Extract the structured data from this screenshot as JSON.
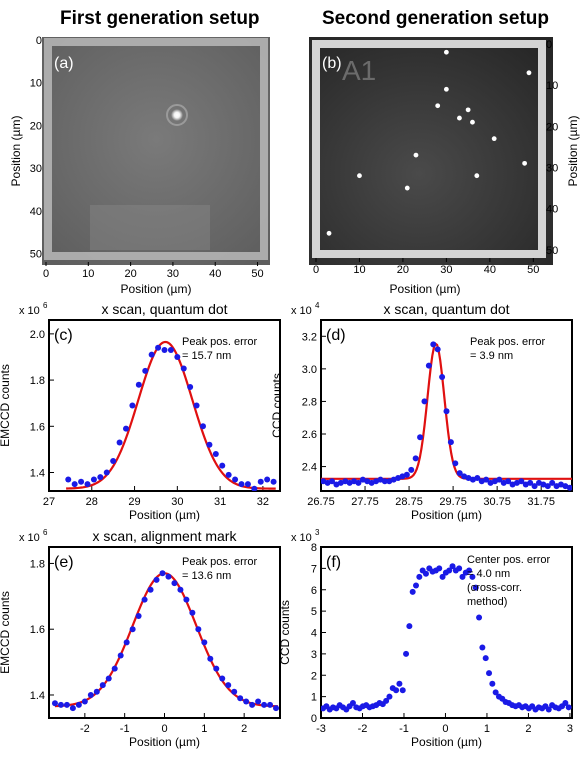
{
  "headers": {
    "left": "First generation setup",
    "right": "Second generation setup"
  },
  "colors": {
    "data_points": "#1a1ae6",
    "fit_line": "#e01010",
    "frame": "#000000",
    "image_frame": "#d8d8d8"
  },
  "chart_data": [
    {
      "panel": "(a)",
      "type": "heatmap",
      "title": "",
      "xlabel": "Position (µm)",
      "ylabel": "Position (µm)",
      "xlim": [
        0,
        52
      ],
      "ylim": [
        0,
        52
      ],
      "xticks": [
        "0",
        "10",
        "20",
        "30",
        "40",
        "50"
      ],
      "yticks": [
        "0",
        "10",
        "20",
        "30",
        "40",
        "50"
      ],
      "ytick_side": "right",
      "description_points": [
        {
          "x": 30,
          "y": 17,
          "kind": "quantum dot"
        }
      ]
    },
    {
      "panel": "(b)",
      "type": "heatmap",
      "title": "",
      "label": "A1",
      "xlabel": "Position (µm)",
      "ylabel": "Position (µm)",
      "xlim": [
        0,
        52
      ],
      "ylim": [
        0,
        52
      ],
      "xticks": [
        "0",
        "10",
        "20",
        "30",
        "40",
        "50"
      ],
      "yticks": [
        "0",
        "10",
        "20",
        "30",
        "40",
        "50"
      ],
      "ytick_side": "right",
      "bright_spots": [
        {
          "x": 30,
          "y": 11
        },
        {
          "x": 35,
          "y": 16
        },
        {
          "x": 28,
          "y": 15
        },
        {
          "x": 33,
          "y": 18
        },
        {
          "x": 41,
          "y": 23
        },
        {
          "x": 48,
          "y": 29
        },
        {
          "x": 10,
          "y": 32
        },
        {
          "x": 21,
          "y": 35
        },
        {
          "x": 37,
          "y": 32
        },
        {
          "x": 30,
          "y": 2
        },
        {
          "x": 49,
          "y": 7
        },
        {
          "x": 23,
          "y": 27
        },
        {
          "x": 3,
          "y": 46
        },
        {
          "x": 36,
          "y": 19
        }
      ]
    },
    {
      "panel": "(c)",
      "type": "scatter",
      "title": "x scan, quantum dot",
      "xlabel": "Position (µm)",
      "ylabel": "EMCCD counts",
      "scale_label": "x 10",
      "scale_exp": "6",
      "annotation": [
        "Peak pos. error",
        "= 15.7 nm"
      ],
      "xlim": [
        27,
        32.4
      ],
      "ylim": [
        1.32,
        2.06
      ],
      "xticks": [
        27,
        28,
        29,
        30,
        31,
        32
      ],
      "xtick_labels": [
        "27",
        "28",
        "29",
        "30",
        "31",
        "32"
      ],
      "yticks": [
        1.4,
        1.6,
        1.8,
        2.0
      ],
      "ytick_labels": [
        "1.4",
        "1.6",
        "1.8",
        "2.0"
      ],
      "series": [
        {
          "kind": "points",
          "x": [
            27.45,
            27.6,
            27.75,
            27.9,
            28.05,
            28.2,
            28.35,
            28.5,
            28.65,
            28.8,
            28.95,
            29.1,
            29.25,
            29.4,
            29.55,
            29.7,
            29.85,
            30.0,
            30.15,
            30.3,
            30.45,
            30.6,
            30.75,
            30.9,
            31.05,
            31.2,
            31.35,
            31.5,
            31.65,
            31.8,
            31.95,
            32.1,
            32.25
          ],
          "y": [
            1.37,
            1.35,
            1.36,
            1.35,
            1.37,
            1.38,
            1.4,
            1.45,
            1.53,
            1.59,
            1.69,
            1.78,
            1.84,
            1.91,
            1.94,
            1.93,
            1.93,
            1.9,
            1.85,
            1.77,
            1.69,
            1.6,
            1.52,
            1.48,
            1.43,
            1.39,
            1.37,
            1.35,
            1.35,
            1.33,
            1.36,
            1.37,
            1.36
          ]
        },
        {
          "kind": "gaussian",
          "amplitude": 0.635,
          "center": 29.72,
          "sigma": 0.63,
          "offset": 1.33,
          "x_range": [
            27.4,
            32.3
          ]
        }
      ]
    },
    {
      "panel": "(d)",
      "type": "scatter",
      "title": "x scan, quantum dot",
      "xlabel": "Position (µm)",
      "ylabel": "CCD counts",
      "scale_label": "x 10",
      "scale_exp": "4",
      "annotation": [
        "Peak pos. error",
        "= 3.9 nm"
      ],
      "xlim": [
        26.75,
        32.45
      ],
      "ylim": [
        2.25,
        3.3
      ],
      "xticks": [
        26.75,
        27.75,
        28.75,
        29.75,
        30.75,
        31.75
      ],
      "xtick_labels": [
        "26.75",
        "27.75",
        "28.75",
        "29.75",
        "30.75",
        "31.75"
      ],
      "yticks": [
        2.4,
        2.6,
        2.8,
        3.0,
        3.2
      ],
      "ytick_labels": [
        "2.4",
        "2.6",
        "2.8",
        "3.0",
        "3.2"
      ],
      "series": [
        {
          "kind": "points",
          "x": [
            26.8,
            26.9,
            27.0,
            27.1,
            27.2,
            27.3,
            27.4,
            27.5,
            27.6,
            27.7,
            27.8,
            27.9,
            28.0,
            28.1,
            28.2,
            28.3,
            28.4,
            28.5,
            28.6,
            28.7,
            28.8,
            28.9,
            29.0,
            29.1,
            29.2,
            29.3,
            29.4,
            29.5,
            29.6,
            29.7,
            29.8,
            29.9,
            30.0,
            30.1,
            30.2,
            30.3,
            30.4,
            30.5,
            30.6,
            30.7,
            30.8,
            30.9,
            31.0,
            31.1,
            31.2,
            31.3,
            31.4,
            31.5,
            31.6,
            31.7,
            31.8,
            31.9,
            32.0,
            32.1,
            32.2,
            32.3,
            32.4
          ],
          "y": [
            2.31,
            2.3,
            2.31,
            2.29,
            2.3,
            2.31,
            2.3,
            2.31,
            2.3,
            2.32,
            2.31,
            2.3,
            2.31,
            2.32,
            2.31,
            2.31,
            2.32,
            2.33,
            2.34,
            2.35,
            2.38,
            2.45,
            2.58,
            2.8,
            3.02,
            3.15,
            3.12,
            2.95,
            2.74,
            2.55,
            2.42,
            2.36,
            2.34,
            2.33,
            2.32,
            2.33,
            2.31,
            2.32,
            2.3,
            2.31,
            2.32,
            2.3,
            2.31,
            2.29,
            2.3,
            2.31,
            2.29,
            2.3,
            2.28,
            2.3,
            2.29,
            2.28,
            2.3,
            2.28,
            2.29,
            2.28,
            2.27
          ]
        },
        {
          "kind": "gaussian",
          "amplitude": 0.83,
          "center": 29.36,
          "sigma": 0.19,
          "offset": 2.325,
          "x_range": [
            26.75,
            32.45
          ]
        }
      ]
    },
    {
      "panel": "(e)",
      "type": "scatter",
      "title": "x scan, alignment mark",
      "xlabel": "Position (µm)",
      "ylabel": "EMCCD counts",
      "scale_label": "x 10",
      "scale_exp": "6",
      "annotation": [
        "Peak pos. error",
        "= 13.6 nm"
      ],
      "xlim": [
        -2.9,
        2.9
      ],
      "ylim": [
        1.33,
        1.85
      ],
      "xticks": [
        -2,
        -1,
        0,
        1,
        2
      ],
      "xtick_labels": [
        "-2",
        "-1",
        "0",
        "1",
        "2"
      ],
      "yticks": [
        1.4,
        1.6,
        1.8
      ],
      "ytick_labels": [
        "1.4",
        "1.6",
        "1.8"
      ],
      "series": [
        {
          "kind": "points",
          "x": [
            -2.75,
            -2.6,
            -2.45,
            -2.3,
            -2.15,
            -2.0,
            -1.85,
            -1.7,
            -1.55,
            -1.4,
            -1.25,
            -1.1,
            -0.95,
            -0.8,
            -0.65,
            -0.5,
            -0.35,
            -0.2,
            -0.05,
            0.1,
            0.25,
            0.4,
            0.55,
            0.7,
            0.85,
            1.0,
            1.15,
            1.3,
            1.45,
            1.6,
            1.75,
            1.9,
            2.05,
            2.2,
            2.35,
            2.5,
            2.65,
            2.8
          ],
          "y": [
            1.375,
            1.37,
            1.37,
            1.36,
            1.37,
            1.38,
            1.4,
            1.41,
            1.43,
            1.45,
            1.48,
            1.52,
            1.56,
            1.6,
            1.64,
            1.69,
            1.72,
            1.75,
            1.77,
            1.76,
            1.74,
            1.72,
            1.69,
            1.65,
            1.6,
            1.56,
            1.51,
            1.48,
            1.45,
            1.43,
            1.41,
            1.39,
            1.38,
            1.37,
            1.38,
            1.37,
            1.37,
            1.36
          ]
        },
        {
          "kind": "gaussian",
          "amplitude": 0.405,
          "center": 0.0,
          "sigma": 0.8,
          "offset": 1.365,
          "x_range": [
            -2.75,
            2.85
          ]
        }
      ]
    },
    {
      "panel": "(f)",
      "type": "scatter",
      "title": "",
      "xlabel": "Position (µm)",
      "ylabel": "CCD counts",
      "scale_label": "x 10",
      "scale_exp": "3",
      "annotation": [
        "Center pos. error",
        "= 4.0 nm",
        "(cross-corr.",
        "method)"
      ],
      "xlim": [
        -3.0,
        3.05
      ],
      "ylim": [
        0,
        8
      ],
      "xticks": [
        -3,
        -2,
        -1,
        0,
        1,
        2,
        3
      ],
      "xtick_labels": [
        "-3",
        "-2",
        "-1",
        "0",
        "1",
        "2",
        "3"
      ],
      "yticks": [
        0,
        1,
        2,
        3,
        4,
        5,
        6,
        7,
        8
      ],
      "ytick_labels": [
        "0",
        "1",
        "2",
        "3",
        "4",
        "5",
        "6",
        "7",
        "8"
      ],
      "series": [
        {
          "kind": "points",
          "x": [
            -2.95,
            -2.87,
            -2.79,
            -2.71,
            -2.63,
            -2.55,
            -2.47,
            -2.39,
            -2.31,
            -2.23,
            -2.15,
            -2.07,
            -1.99,
            -1.91,
            -1.83,
            -1.75,
            -1.67,
            -1.59,
            -1.51,
            -1.43,
            -1.35,
            -1.27,
            -1.19,
            -1.11,
            -1.03,
            -0.95,
            -0.87,
            -0.79,
            -0.71,
            -0.63,
            -0.55,
            -0.47,
            -0.39,
            -0.31,
            -0.23,
            -0.15,
            -0.07,
            0.01,
            0.09,
            0.17,
            0.25,
            0.33,
            0.41,
            0.49,
            0.57,
            0.65,
            0.73,
            0.81,
            0.89,
            0.97,
            1.05,
            1.13,
            1.21,
            1.29,
            1.37,
            1.45,
            1.53,
            1.61,
            1.69,
            1.77,
            1.85,
            1.93,
            2.01,
            2.09,
            2.17,
            2.25,
            2.33,
            2.41,
            2.49,
            2.57,
            2.65,
            2.73,
            2.81,
            2.89,
            2.97
          ],
          "y": [
            0.45,
            0.55,
            0.4,
            0.5,
            0.45,
            0.6,
            0.5,
            0.4,
            0.55,
            0.7,
            0.5,
            0.45,
            0.55,
            0.6,
            0.5,
            0.55,
            0.6,
            0.7,
            0.65,
            0.8,
            1.0,
            1.4,
            1.3,
            1.6,
            1.3,
            3.0,
            4.3,
            5.9,
            6.2,
            6.6,
            6.9,
            6.75,
            7.0,
            6.85,
            6.9,
            7.0,
            6.6,
            6.8,
            6.9,
            7.1,
            6.9,
            7.0,
            6.6,
            6.8,
            6.9,
            6.6,
            6.1,
            4.7,
            3.3,
            2.8,
            2.1,
            1.6,
            1.2,
            1.0,
            0.9,
            0.75,
            0.7,
            0.6,
            0.55,
            0.6,
            0.5,
            0.55,
            0.45,
            0.55,
            0.4,
            0.5,
            0.45,
            0.55,
            0.4,
            0.6,
            0.5,
            0.45,
            0.55,
            0.7,
            0.5
          ]
        }
      ]
    }
  ]
}
